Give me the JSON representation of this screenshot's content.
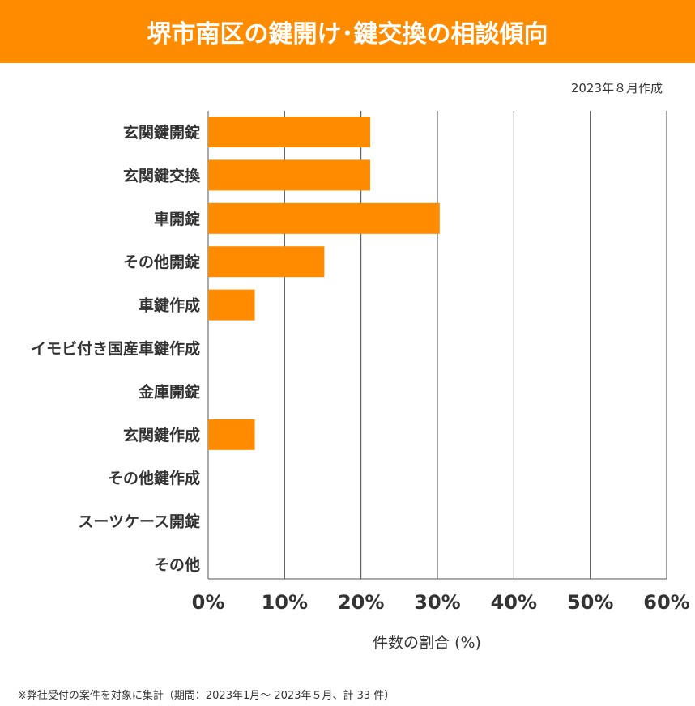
{
  "header": {
    "title": "堺市南区の鍵開け･鍵交換の相談傾向"
  },
  "created": "2023年８月作成",
  "footnote": "※弊社受付の案件を対象に集計（期間：2023年1月～ 2023年５月、計 33 件）",
  "colors": {
    "accent": "#ff8c00",
    "bar": "#ff8c00"
  },
  "chart_data": {
    "type": "bar",
    "orientation": "horizontal",
    "categories": [
      "玄関鍵開錠",
      "玄関鍵交換",
      "車開錠",
      "その他開錠",
      "車鍵作成",
      "イモビ付き国産車鍵作成",
      "金庫開錠",
      "玄関鍵作成",
      "その他鍵作成",
      "スーツケース開錠",
      "その他"
    ],
    "values": [
      21.2,
      21.2,
      30.3,
      15.2,
      6.1,
      0,
      0,
      6.1,
      0,
      0,
      0
    ],
    "xlabel": "件数の割合 (%)",
    "xlim": [
      0,
      60
    ],
    "xticks": [
      "0%",
      "10%",
      "20%",
      "30%",
      "40%",
      "50%",
      "60%"
    ],
    "grid": true
  }
}
